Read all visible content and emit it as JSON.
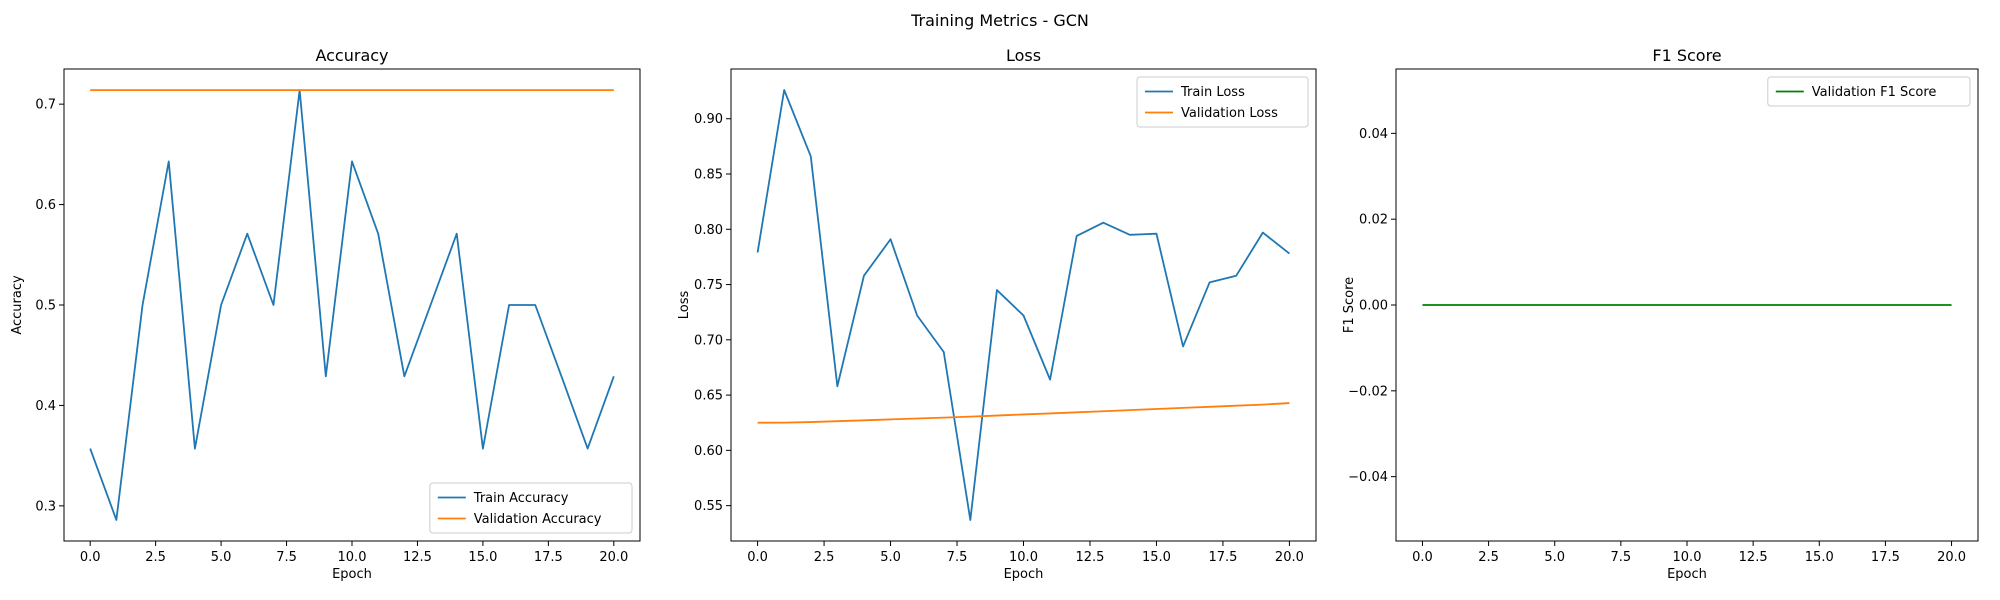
{
  "figure": {
    "suptitle": "Training Metrics - GCN"
  },
  "chart_data": [
    {
      "type": "line",
      "title": "Accuracy",
      "xlabel": "Epoch",
      "ylabel": "Accuracy",
      "xlim": [
        -1.0,
        21.0
      ],
      "ylim": [
        0.265,
        0.735
      ],
      "xticks": [
        0.0,
        2.5,
        5.0,
        7.5,
        10.0,
        12.5,
        15.0,
        17.5,
        20.0
      ],
      "xtick_labels": [
        "0.0",
        "2.5",
        "5.0",
        "7.5",
        "10.0",
        "12.5",
        "15.0",
        "17.5",
        "20.0"
      ],
      "yticks": [
        0.3,
        0.4,
        0.5,
        0.6,
        0.7
      ],
      "ytick_labels": [
        "0.3",
        "0.4",
        "0.5",
        "0.6",
        "0.7"
      ],
      "legend": "lower right",
      "grid": false,
      "x": [
        0,
        1,
        2,
        3,
        4,
        5,
        6,
        7,
        8,
        9,
        10,
        11,
        12,
        13,
        14,
        15,
        16,
        17,
        18,
        19,
        20
      ],
      "series": [
        {
          "name": "Train Accuracy",
          "color": "#1f77b4",
          "values": [
            0.357,
            0.286,
            0.5,
            0.643,
            0.357,
            0.5,
            0.571,
            0.5,
            0.714,
            0.429,
            0.643,
            0.571,
            0.429,
            0.5,
            0.571,
            0.357,
            0.5,
            0.5,
            0.429,
            0.357,
            0.429
          ]
        },
        {
          "name": "Validation Accuracy",
          "color": "#ff7f0e",
          "values": [
            0.714,
            0.714,
            0.714,
            0.714,
            0.714,
            0.714,
            0.714,
            0.714,
            0.714,
            0.714,
            0.714,
            0.714,
            0.714,
            0.714,
            0.714,
            0.714,
            0.714,
            0.714,
            0.714,
            0.714,
            0.714
          ]
        }
      ]
    },
    {
      "type": "line",
      "title": "Loss",
      "xlabel": "Epoch",
      "ylabel": "Loss",
      "xlim": [
        -1.0,
        21.0
      ],
      "ylim": [
        0.518,
        0.945
      ],
      "xticks": [
        0.0,
        2.5,
        5.0,
        7.5,
        10.0,
        12.5,
        15.0,
        17.5,
        20.0
      ],
      "xtick_labels": [
        "0.0",
        "2.5",
        "5.0",
        "7.5",
        "10.0",
        "12.5",
        "15.0",
        "17.5",
        "20.0"
      ],
      "yticks": [
        0.55,
        0.6,
        0.65,
        0.7,
        0.75,
        0.8,
        0.85,
        0.9
      ],
      "ytick_labels": [
        "0.55",
        "0.60",
        "0.65",
        "0.70",
        "0.75",
        "0.80",
        "0.85",
        "0.90"
      ],
      "legend": "upper right",
      "grid": false,
      "x": [
        0,
        1,
        2,
        3,
        4,
        5,
        6,
        7,
        8,
        9,
        10,
        11,
        12,
        13,
        14,
        15,
        16,
        17,
        18,
        19,
        20
      ],
      "series": [
        {
          "name": "Train Loss",
          "color": "#1f77b4",
          "values": [
            0.779,
            0.926,
            0.866,
            0.658,
            0.758,
            0.791,
            0.722,
            0.689,
            0.537,
            0.745,
            0.722,
            0.664,
            0.794,
            0.806,
            0.795,
            0.796,
            0.694,
            0.752,
            0.758,
            0.797,
            0.778
          ]
        },
        {
          "name": "Validation Loss",
          "color": "#ff7f0e",
          "values": [
            0.625,
            0.6251,
            0.6256,
            0.6264,
            0.6272,
            0.628,
            0.6288,
            0.6296,
            0.6305,
            0.6315,
            0.6325,
            0.6334,
            0.6344,
            0.6354,
            0.6364,
            0.6374,
            0.6384,
            0.6394,
            0.6404,
            0.6414,
            0.6428
          ]
        }
      ]
    },
    {
      "type": "line",
      "title": "F1 Score",
      "xlabel": "Epoch",
      "ylabel": "F1 Score",
      "xlim": [
        -1.0,
        21.0
      ],
      "ylim": [
        -0.055,
        0.055
      ],
      "xticks": [
        0.0,
        2.5,
        5.0,
        7.5,
        10.0,
        12.5,
        15.0,
        17.5,
        20.0
      ],
      "xtick_labels": [
        "0.0",
        "2.5",
        "5.0",
        "7.5",
        "10.0",
        "12.5",
        "15.0",
        "17.5",
        "20.0"
      ],
      "yticks": [
        -0.04,
        -0.02,
        0.0,
        0.02,
        0.04
      ],
      "ytick_labels": [
        "−0.04",
        "−0.02",
        "0.00",
        "0.02",
        "0.04"
      ],
      "legend": "upper right",
      "grid": false,
      "x": [
        0,
        1,
        2,
        3,
        4,
        5,
        6,
        7,
        8,
        9,
        10,
        11,
        12,
        13,
        14,
        15,
        16,
        17,
        18,
        19,
        20
      ],
      "series": [
        {
          "name": "Validation F1 Score",
          "color": "#008000",
          "values": [
            0,
            0,
            0,
            0,
            0,
            0,
            0,
            0,
            0,
            0,
            0,
            0,
            0,
            0,
            0,
            0,
            0,
            0,
            0,
            0,
            0
          ]
        }
      ]
    }
  ]
}
